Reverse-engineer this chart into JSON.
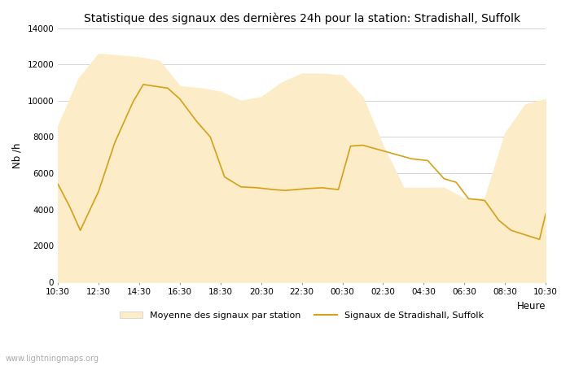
{
  "title": "Statistique des signaux des dernières 24h pour la station: Stradishall, Suffolk",
  "xlabel": "Heure",
  "ylabel": "Nb /h",
  "ylim": [
    0,
    14000
  ],
  "yticks": [
    0,
    2000,
    4000,
    6000,
    8000,
    10000,
    12000,
    14000
  ],
  "xtick_labels": [
    "10:30",
    "12:30",
    "14:30",
    "16:30",
    "18:30",
    "20:30",
    "22:30",
    "00:30",
    "02:30",
    "04:30",
    "06:30",
    "08:30",
    "10:30"
  ],
  "background_color": "#ffffff",
  "fill_color": "#fdecc8",
  "line_color": "#d4a017",
  "watermark": "www.lightningmaps.org",
  "legend_fill_label": "Moyenne des signaux par station",
  "legend_line_label": "Signaux de Stradishall, Suffolk",
  "fill_x": [
    0,
    0.5,
    1.0,
    1.5,
    2.0,
    2.5,
    3.0,
    3.5,
    4.0,
    4.5,
    5.0,
    5.5,
    6.0,
    6.5,
    7.0,
    7.5,
    8.0,
    8.5,
    9.0,
    9.5,
    10.0,
    10.5,
    11.0,
    11.5,
    12.0
  ],
  "fill_upper": [
    8600,
    11200,
    12600,
    12500,
    12400,
    12200,
    10800,
    10700,
    10500,
    10000,
    10200,
    11000,
    11500,
    11500,
    11400,
    10200,
    7500,
    5200,
    5200,
    5200,
    4600,
    4600,
    8200,
    9800,
    10100
  ],
  "signal_x": [
    0.0,
    0.28,
    0.55,
    1.0,
    1.4,
    1.85,
    2.1,
    2.4,
    2.7,
    3.0,
    3.4,
    3.75,
    4.1,
    4.5,
    4.9,
    5.3,
    5.6,
    6.1,
    6.5,
    6.9,
    7.2,
    7.5,
    7.9,
    8.3,
    8.7,
    9.1,
    9.5,
    9.8,
    10.1,
    10.5,
    10.85,
    11.15,
    11.5,
    11.85,
    12.0
  ],
  "signal_y": [
    5400,
    4200,
    2850,
    5000,
    7700,
    9950,
    10900,
    10800,
    10700,
    10100,
    8900,
    8000,
    5800,
    5250,
    5200,
    5100,
    5050,
    5150,
    5200,
    5100,
    7500,
    7550,
    7300,
    7050,
    6800,
    6700,
    5700,
    5500,
    4600,
    4500,
    3400,
    2850,
    2600,
    2350,
    3750
  ]
}
